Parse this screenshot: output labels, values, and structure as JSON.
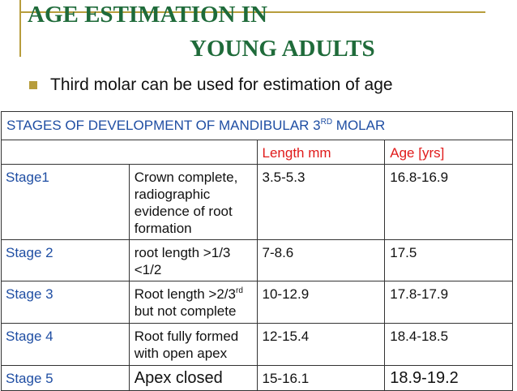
{
  "slide": {
    "title_line1": "AGE ESTIMATION IN",
    "title_line2": "YOUNG ADULTS",
    "bullet_text": "Third molar can be used for estimation of age",
    "colors": {
      "title": "#1f6b3a",
      "accent": "#b79d3c",
      "stage_label": "#1f4ea3",
      "column_header": "#e01b1b"
    }
  },
  "table": {
    "header_text": "STAGES OF DEVELOPMENT OF MANDIBULAR 3",
    "header_sup": "RD",
    "header_tail": " MOLAR",
    "col_length": "Length mm",
    "col_age": "Age [yrs]",
    "rows": [
      {
        "stage": "Stage1",
        "desc": "Crown complete, radiographic evidence of root formation",
        "length": "3.5-5.3",
        "age": "16.8-16.9"
      },
      {
        "stage": "Stage 2",
        "desc": "root length >1/3 <1/2",
        "length": "7-8.6",
        "age": "17.5"
      },
      {
        "stage": "Stage 3",
        "desc_a": "Root length >2/3",
        "desc_sup": "rd",
        "desc_b": " but not complete",
        "length": "10-12.9",
        "age": "17.8-17.9"
      },
      {
        "stage": "Stage 4",
        "desc": "Root fully formed with open apex",
        "length": "12-15.4",
        "age": "18.4-18.5"
      },
      {
        "stage": "Stage 5",
        "desc": "Apex closed",
        "length": "15-16.1",
        "age": "18.9-19.2"
      }
    ]
  }
}
